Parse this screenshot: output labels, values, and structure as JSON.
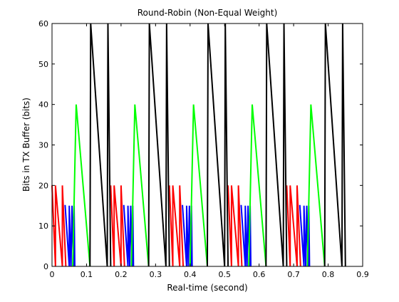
{
  "chart_data": {
    "type": "line",
    "title": "Round-Robin (Non-Equal Weight)",
    "xlabel": "Real-time (second)",
    "ylabel": "Bits in TX Buffer (bits)",
    "xlim": [
      0,
      0.9
    ],
    "ylim": [
      0,
      60
    ],
    "xticks": [
      0,
      0.1,
      0.2,
      0.3,
      0.4,
      0.5,
      0.6,
      0.7,
      0.8,
      0.9
    ],
    "xtick_labels": [
      "0",
      "0.1",
      "0.2",
      "0.3",
      "0.4",
      "0.5",
      "0.6",
      "0.7",
      "0.8",
      "0.9"
    ],
    "yticks": [
      0,
      10,
      20,
      30,
      40,
      50,
      60
    ],
    "ytick_labels": [
      "0",
      "10",
      "20",
      "30",
      "40",
      "50",
      "60"
    ],
    "grid": false,
    "legend": "none",
    "period": 0.17,
    "cycles": 5,
    "series": [
      {
        "color": "#ff0000",
        "x": [
          0.0,
          0.0,
          0.01,
          0.01,
          0.02,
          0.02,
          0.03,
          0.03,
          0.04
        ],
        "y": [
          20,
          20,
          0,
          20,
          10,
          10,
          0,
          20,
          0
        ]
      },
      {
        "color": "#0000ff",
        "x": [
          0.036,
          0.038,
          0.05,
          0.05,
          0.055,
          0.058,
          0.062,
          0.064,
          0.066,
          0.066
        ],
        "y": [
          15,
          15,
          0,
          15,
          0,
          15,
          0,
          15,
          0,
          0
        ]
      },
      {
        "color": "#00ff00",
        "x": [
          0.06,
          0.07,
          0.11
        ],
        "y": [
          0,
          40,
          0
        ]
      },
      {
        "color": "#000000",
        "x": [
          0.11,
          0.112,
          0.16,
          0.162,
          0.17
        ],
        "y": [
          0,
          60,
          0,
          60,
          0
        ]
      }
    ]
  }
}
